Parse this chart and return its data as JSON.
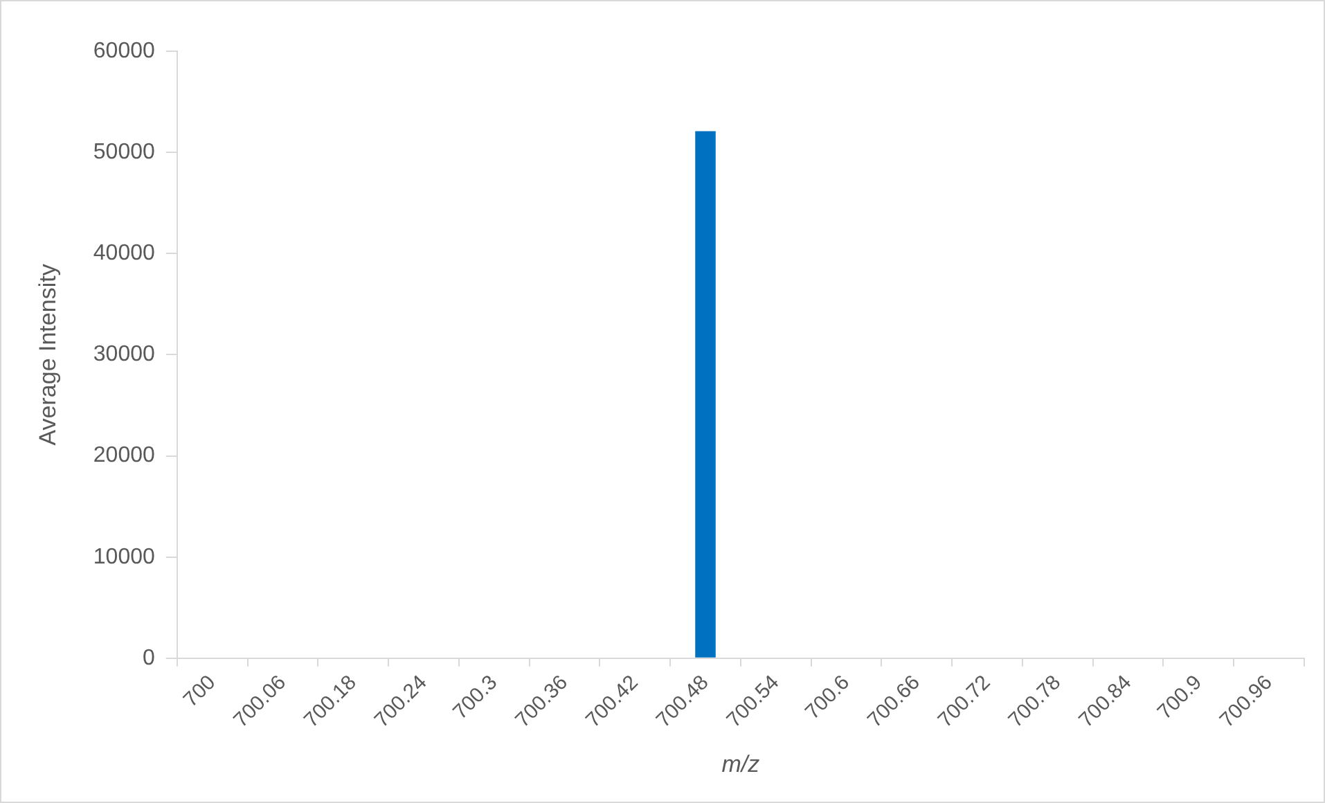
{
  "chart_data": {
    "type": "bar",
    "xlabel": "m/z",
    "ylabel": "Average Intensity",
    "categories": [
      "700",
      "700.06",
      "700.18",
      "700.24",
      "700.3",
      "700.36",
      "700.42",
      "700.48",
      "700.54",
      "700.6",
      "700.66",
      "700.72",
      "700.78",
      "700.84",
      "700.9",
      "700.96"
    ],
    "values": [
      0,
      0,
      0,
      0,
      0,
      0,
      0,
      52100,
      0,
      0,
      0,
      0,
      0,
      0,
      0,
      0
    ],
    "color": "#0070c0",
    "ylim": [
      0,
      60000
    ],
    "yticks": [
      0,
      10000,
      20000,
      30000,
      40000,
      50000,
      60000
    ],
    "grid": false,
    "legend": false
  }
}
